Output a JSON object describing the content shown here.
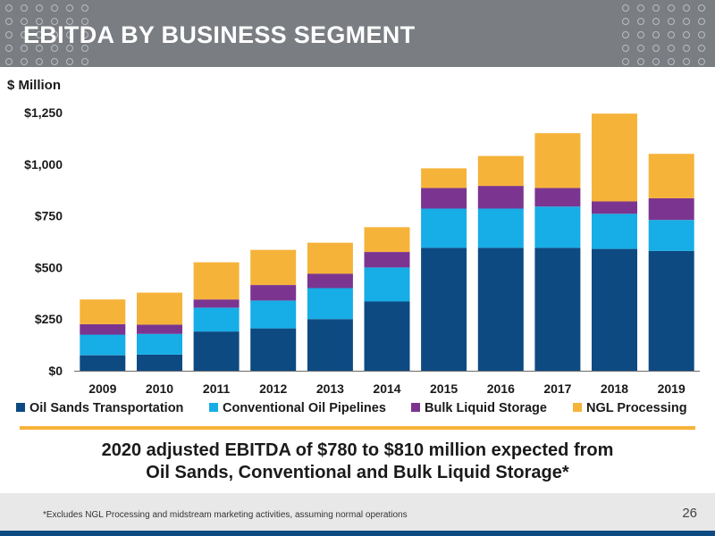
{
  "header": {
    "title": "EBITDA BY BUSINESS SEGMENT"
  },
  "unit_label": "$ Million",
  "chart_data": {
    "type": "bar",
    "stacked": true,
    "categories": [
      "2009",
      "2010",
      "2011",
      "2012",
      "2013",
      "2014",
      "2015",
      "2016",
      "2017",
      "2018",
      "2019"
    ],
    "y_ticks": [
      "$0",
      "$250",
      "$500",
      "$750",
      "$1,000",
      "$1,250"
    ],
    "ylim": [
      0,
      1250
    ],
    "grid": false,
    "legend_position": "bottom",
    "series": [
      {
        "name": "Oil Sands Transportation",
        "color": "#0e4a82",
        "values": [
          75,
          78,
          190,
          205,
          250,
          335,
          595,
          595,
          595,
          590,
          580
        ]
      },
      {
        "name": "Conventional Oil Pipelines",
        "color": "#17ade6",
        "values": [
          100,
          100,
          115,
          135,
          150,
          165,
          190,
          190,
          200,
          170,
          150
        ]
      },
      {
        "name": "Bulk Liquid Storage",
        "color": "#7b3590",
        "values": [
          50,
          45,
          40,
          75,
          70,
          75,
          100,
          110,
          90,
          60,
          105
        ]
      },
      {
        "name": "NGL Processing",
        "color": "#f6b33a",
        "values": [
          120,
          155,
          180,
          170,
          150,
          120,
          95,
          145,
          265,
          425,
          215
        ]
      }
    ]
  },
  "callout": {
    "line1": "2020 adjusted EBITDA of $780 to $810 million expected from",
    "line2": "Oil Sands, Conventional and Bulk Liquid Storage*"
  },
  "footnote": "*Excludes NGL Processing and midstream marketing activities, assuming normal operations",
  "page_number": "26"
}
